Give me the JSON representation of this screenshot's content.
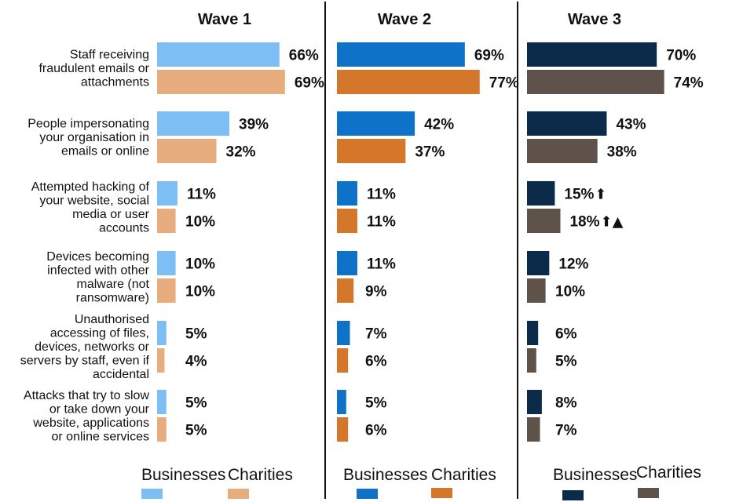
{
  "colors": {
    "wave1_businesses": "#7dbff5",
    "wave1_charities": "#e8ad7e",
    "wave2_businesses": "#0f72c9",
    "wave2_charities": "#d4772b",
    "wave3_businesses": "#0c2b4a",
    "wave3_charities": "#5f524b",
    "divider": "#111111"
  },
  "chart_data": {
    "type": "bar",
    "orientation": "horizontal",
    "categories": [
      [
        "Staff receiving",
        "fraudulent emails or",
        "attachments"
      ],
      [
        "People impersonating",
        "your organisation in",
        "emails or online"
      ],
      [
        "Attempted hacking of",
        "your website, social",
        "media or user",
        "accounts"
      ],
      [
        "Devices becoming",
        "infected with other",
        "malware (not",
        "ransomware)"
      ],
      [
        "Unauthorised",
        "accessing of files,",
        "devices, networks or",
        "servers by staff, even if",
        "accidental"
      ],
      [
        "Attacks that try to slow",
        "or take down your",
        "website, applications",
        "or online services"
      ]
    ],
    "value_format": "percent",
    "panels": [
      {
        "title": "Wave 1",
        "series": [
          {
            "name": "Businesses",
            "color_key": "wave1_businesses",
            "values": [
              66,
              39,
              11,
              10,
              5,
              5
            ],
            "markers": [
              "",
              "",
              "",
              "",
              "",
              ""
            ]
          },
          {
            "name": "Charities",
            "color_key": "wave1_charities",
            "values": [
              69,
              32,
              10,
              10,
              4,
              5
            ],
            "markers": [
              "",
              "",
              "",
              "",
              "",
              ""
            ]
          }
        ]
      },
      {
        "title": "Wave 2",
        "series": [
          {
            "name": "Businesses",
            "color_key": "wave2_businesses",
            "values": [
              69,
              42,
              11,
              11,
              7,
              5
            ],
            "markers": [
              "",
              "",
              "",
              "",
              "",
              ""
            ]
          },
          {
            "name": "Charities",
            "color_key": "wave2_charities",
            "values": [
              77,
              37,
              11,
              9,
              6,
              6
            ],
            "markers": [
              "",
              "",
              "",
              "",
              "",
              ""
            ]
          }
        ]
      },
      {
        "title": "Wave 3",
        "series": [
          {
            "name": "Businesses",
            "color_key": "wave3_businesses",
            "values": [
              70,
              43,
              15,
              12,
              6,
              8
            ],
            "markers": [
              "",
              "",
              "⬆",
              "",
              "",
              ""
            ]
          },
          {
            "name": "Charities",
            "color_key": "wave3_charities",
            "values": [
              74,
              38,
              18,
              10,
              5,
              7
            ],
            "markers": [
              "",
              "",
              "⬆▲",
              "",
              "",
              ""
            ]
          }
        ]
      }
    ],
    "legend_position": "bottom",
    "xlim": [
      0,
      100
    ]
  }
}
